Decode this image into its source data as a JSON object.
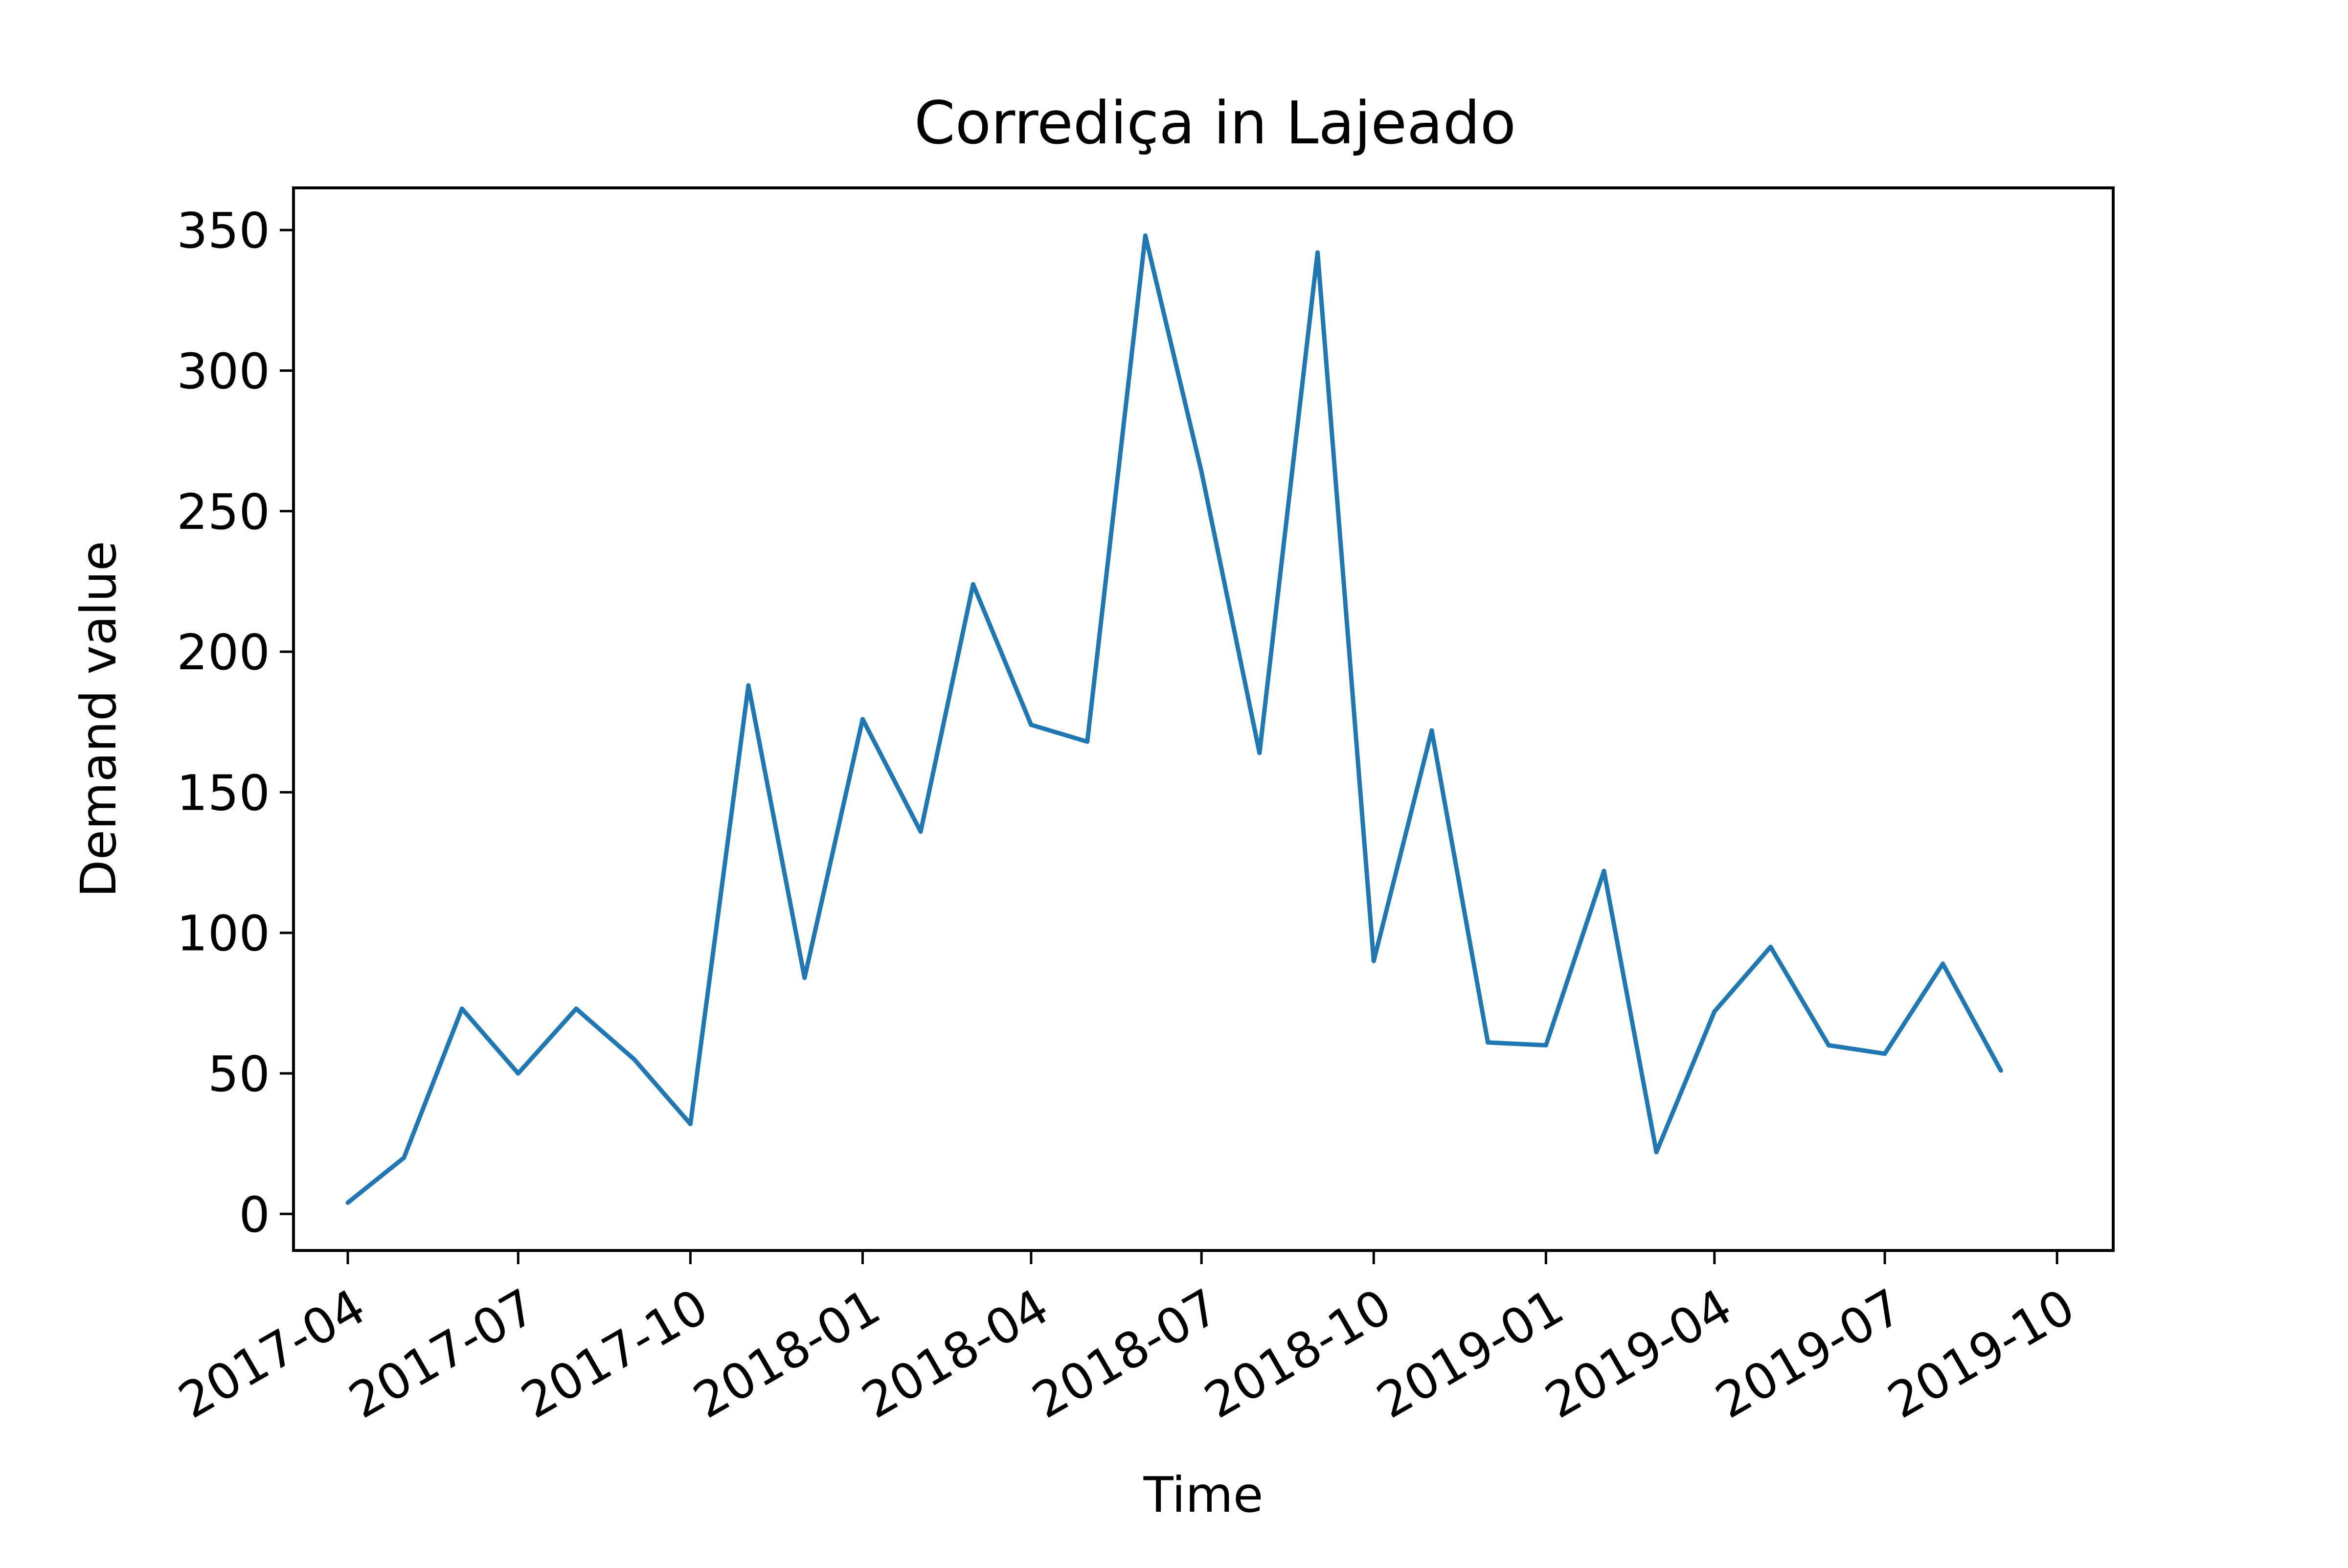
{
  "chart_data": {
    "type": "line",
    "title": "Corrediça in Lajeado",
    "xlabel": "Time",
    "ylabel": "Demand value",
    "x_tick_labels": [
      "2017-04",
      "2017-07",
      "2017-10",
      "2018-01",
      "2018-04",
      "2018-07",
      "2018-10",
      "2019-01",
      "2019-04",
      "2019-07",
      "2019-10"
    ],
    "y_ticks": [
      0,
      50,
      100,
      150,
      200,
      250,
      300,
      350
    ],
    "ylim": [
      -13,
      365
    ],
    "xlim": [
      "2017-03-03",
      "2019-10-31"
    ],
    "grid": false,
    "series": [
      {
        "color": "#1f77b4",
        "points": [
          {
            "x": "2017-04-01",
            "y": 4
          },
          {
            "x": "2017-05-01",
            "y": 20
          },
          {
            "x": "2017-06-01",
            "y": 73
          },
          {
            "x": "2017-07-01",
            "y": 50
          },
          {
            "x": "2017-08-01",
            "y": 73
          },
          {
            "x": "2017-09-01",
            "y": 55
          },
          {
            "x": "2017-10-01",
            "y": 32
          },
          {
            "x": "2017-11-01",
            "y": 188
          },
          {
            "x": "2017-12-01",
            "y": 84
          },
          {
            "x": "2018-01-01",
            "y": 176
          },
          {
            "x": "2018-02-01",
            "y": 136
          },
          {
            "x": "2018-03-01",
            "y": 224
          },
          {
            "x": "2018-04-01",
            "y": 174
          },
          {
            "x": "2018-05-01",
            "y": 168
          },
          {
            "x": "2018-06-01",
            "y": 348
          },
          {
            "x": "2018-07-01",
            "y": 264
          },
          {
            "x": "2018-08-01",
            "y": 164
          },
          {
            "x": "2018-09-01",
            "y": 342
          },
          {
            "x": "2018-10-01",
            "y": 90
          },
          {
            "x": "2018-11-01",
            "y": 172
          },
          {
            "x": "2018-12-01",
            "y": 61
          },
          {
            "x": "2019-01-01",
            "y": 60
          },
          {
            "x": "2019-02-01",
            "y": 122
          },
          {
            "x": "2019-03-01",
            "y": 22
          },
          {
            "x": "2019-04-01",
            "y": 72
          },
          {
            "x": "2019-05-01",
            "y": 95
          },
          {
            "x": "2019-06-01",
            "y": 60
          },
          {
            "x": "2019-07-01",
            "y": 57
          },
          {
            "x": "2019-08-01",
            "y": 89
          },
          {
            "x": "2019-09-01",
            "y": 51
          }
        ]
      }
    ]
  }
}
